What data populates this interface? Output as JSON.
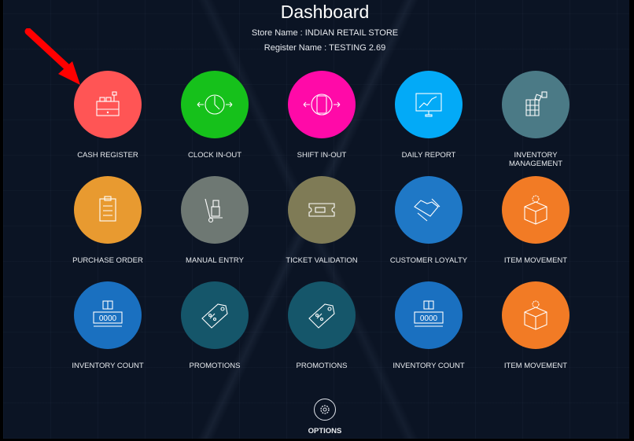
{
  "header": {
    "title": "Dashboard",
    "store_name": "Store Name : INDIAN RETAIL STORE",
    "register_name": "Register Name : TESTING 2.69"
  },
  "tiles": [
    {
      "label": "CASH REGISTER",
      "icon": "cash-register-icon",
      "color": "#ff5555"
    },
    {
      "label": "CLOCK IN-OUT",
      "icon": "clock-icon",
      "color": "#16c11b"
    },
    {
      "label": "SHIFT IN-OUT",
      "icon": "shift-icon",
      "color": "#ff0aa8"
    },
    {
      "label": "DAILY REPORT",
      "icon": "chart-monitor-icon",
      "color": "#03aaf7"
    },
    {
      "label": "INVENTORY MANAGEMENT",
      "icon": "inventory-grid-icon",
      "color": "#4b7a86"
    },
    {
      "label": "PURCHASE ORDER",
      "icon": "clipboard-icon",
      "color": "#e89a30"
    },
    {
      "label": "MANUAL ENTRY",
      "icon": "hand-truck-icon",
      "color": "#6e7873"
    },
    {
      "label": "TICKET VALIDATION",
      "icon": "ticket-icon",
      "color": "#7f7b56"
    },
    {
      "label": "CUSTOMER LOYALTY",
      "icon": "handshake-icon",
      "color": "#1f78c6"
    },
    {
      "label": "ITEM MOVEMENT",
      "icon": "box-gear-icon",
      "color": "#f27b25"
    },
    {
      "label": "INVENTORY COUNT",
      "icon": "box-counter-icon",
      "color": "#1a70c0"
    },
    {
      "label": "PROMOTIONS",
      "icon": "price-tag-icon",
      "color": "#15566a"
    },
    {
      "label": "PROMOTIONS",
      "icon": "price-tag-icon",
      "color": "#15566a"
    },
    {
      "label": "INVENTORY COUNT",
      "icon": "box-counter-icon",
      "color": "#1a70c0"
    },
    {
      "label": "ITEM MOVEMENT",
      "icon": "box-gear-icon",
      "color": "#f27b25"
    }
  ],
  "options": {
    "label": "OPTIONS",
    "icon": "gear-icon"
  },
  "annotation": {
    "arrow_color": "#ff0000"
  }
}
